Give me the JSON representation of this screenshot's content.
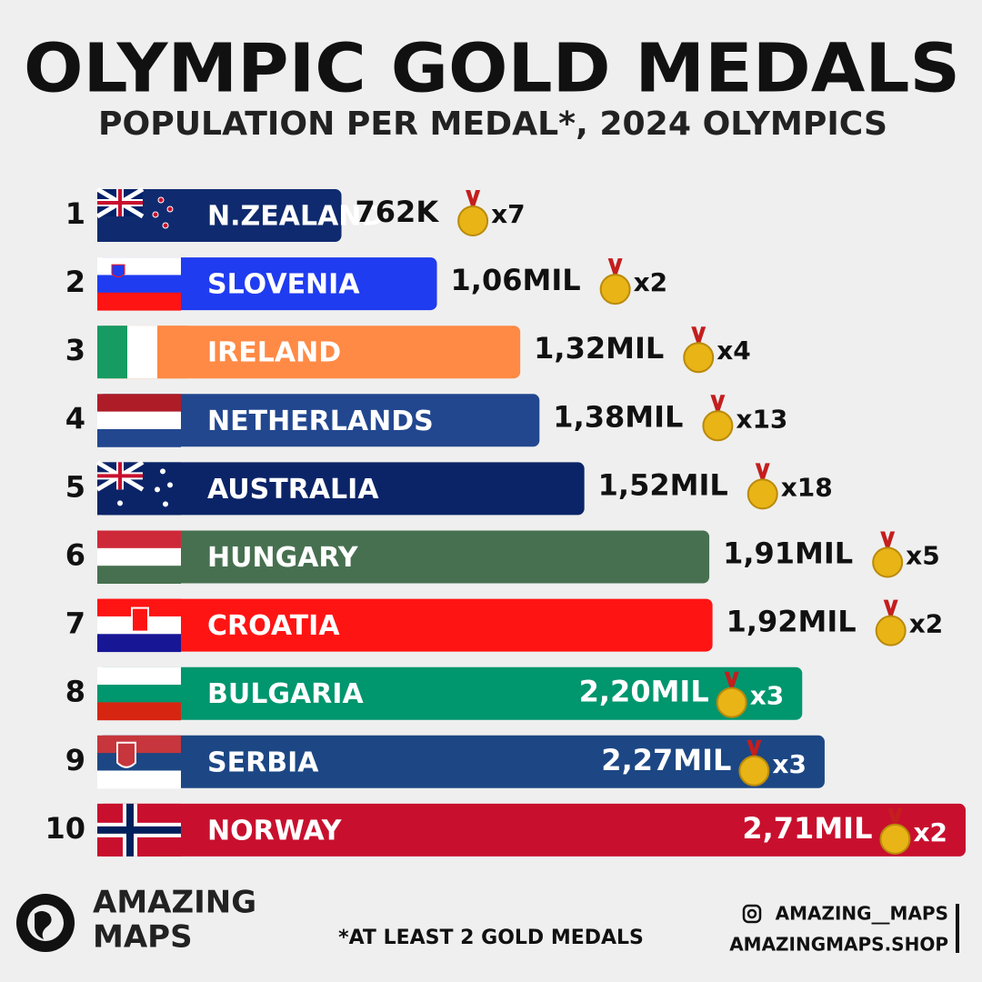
{
  "chart_data": {
    "type": "bar",
    "orientation": "horizontal",
    "title": "OLYMPIC GOLD MEDALS",
    "subtitle": "POPULATION PER MEDAL*, 2024 OLYMPICS",
    "ranks": [
      1,
      2,
      3,
      4,
      5,
      6,
      7,
      8,
      9,
      10
    ],
    "categories": [
      "N.ZEALAND",
      "SLOVENIA",
      "IRELAND",
      "NETHERLANDS",
      "AUSTRALIA",
      "HUNGARY",
      "CROATIA",
      "BULGARIA",
      "SERBIA",
      "NORWAY"
    ],
    "values": [
      762000,
      1060000,
      1320000,
      1380000,
      1520000,
      1910000,
      1920000,
      2200000,
      2270000,
      2710000
    ],
    "value_labels": [
      "762K",
      "1,06MIL",
      "1,32MIL",
      "1,38MIL",
      "1,52MIL",
      "1,91MIL",
      "1,92MIL",
      "2,20MIL",
      "2,27MIL",
      "2,71MIL"
    ],
    "medals": [
      7,
      2,
      4,
      13,
      18,
      5,
      2,
      3,
      3,
      2
    ],
    "medal_labels": [
      "x7",
      "x2",
      "x4",
      "x13",
      "x18",
      "x5",
      "x2",
      "x3",
      "x3",
      "x2"
    ],
    "colors": [
      "#0f2a6e",
      "#1f3cf0",
      "#ff8a45",
      "#22478f",
      "#0b2468",
      "#477050",
      "#ff1414",
      "#00966e",
      "#1c4784",
      "#c8102e"
    ],
    "footnote": "*AT LEAST 2 GOLD MEDALS",
    "brand": [
      "AMAZING",
      "MAPS"
    ],
    "social": "AMAZING__MAPS",
    "website": "AMAZINGMAPS.SHOP"
  }
}
